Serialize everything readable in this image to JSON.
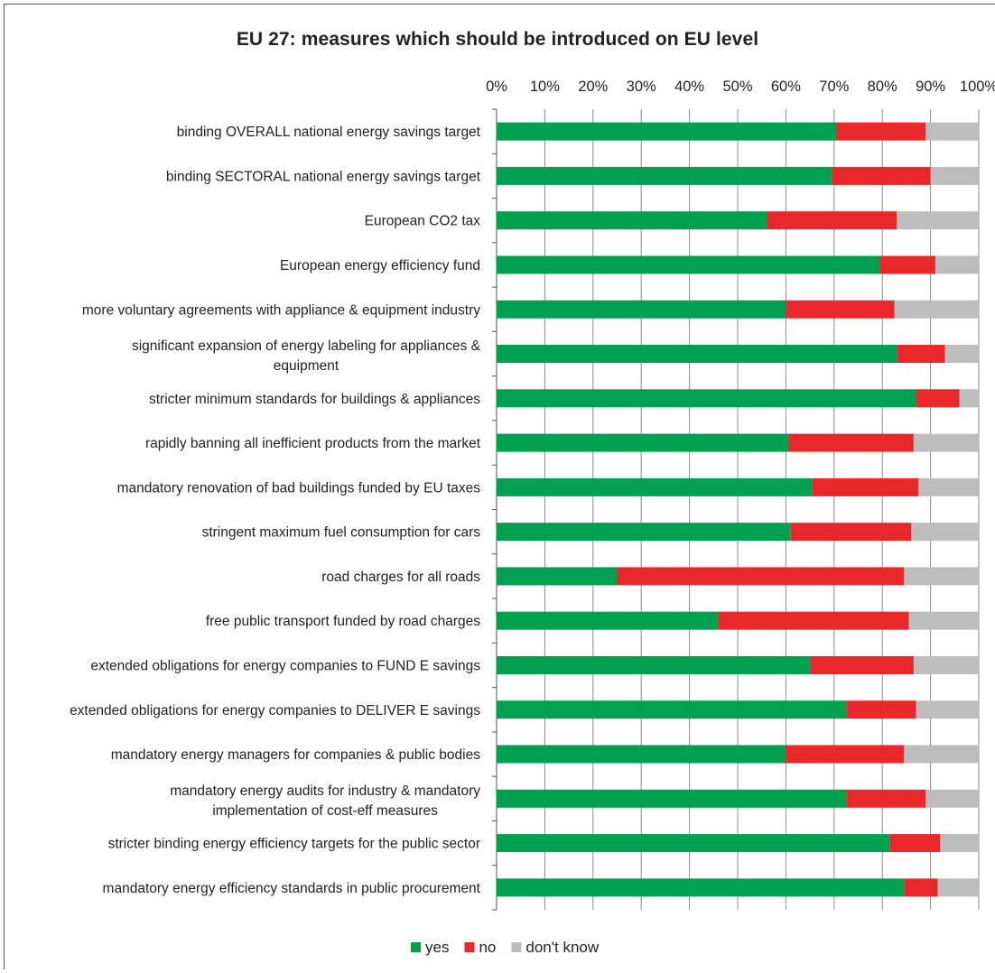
{
  "chart_data": {
    "type": "bar",
    "orientation": "horizontal",
    "stacked": true,
    "title": "EU 27: measures which should be introduced on EU level",
    "xaxis_position": "top",
    "xlim": [
      0,
      100
    ],
    "xticks": [
      "0%",
      "10%",
      "20%",
      "30%",
      "40%",
      "50%",
      "60%",
      "70%",
      "80%",
      "90%",
      "100%"
    ],
    "grid": "vertical",
    "legend_position": "bottom",
    "categories": [
      [
        "binding OVERALL national energy savings target"
      ],
      [
        "binding  SECTORAL national energy savings target"
      ],
      [
        "European CO2 tax"
      ],
      [
        "European energy efficiency fund"
      ],
      [
        "more voluntary agreements with appliance & equipment industry"
      ],
      [
        "significant expansion of energy labeling for appliances &",
        "equipment"
      ],
      [
        "stricter minimum standards for buildings & appliances"
      ],
      [
        "rapidly banning all inefficient products from the market"
      ],
      [
        "mandatory renovation of bad buildings funded by EU taxes"
      ],
      [
        "stringent maximum fuel consumption for cars"
      ],
      [
        "road charges for all roads"
      ],
      [
        "free public transport funded by road charges"
      ],
      [
        "extended obligations for energy companies to FUND E savings"
      ],
      [
        "extended obligations for energy companies to DELIVER E savings"
      ],
      [
        "mandatory energy managers for companies & public bodies"
      ],
      [
        "mandatory energy audits for industry & mandatory",
        "implementation of cost-eff measures"
      ],
      [
        "stricter binding energy efficiency targets for the public sector"
      ],
      [
        "mandatory energy efficiency standards in public procurement"
      ]
    ],
    "series": [
      {
        "name": "yes",
        "color": "#00a050",
        "values": [
          70.5,
          69.5,
          56,
          79.5,
          60,
          83,
          87,
          60.5,
          65.5,
          61,
          25,
          46,
          65,
          72.5,
          60,
          72.5,
          81.5,
          84.5
        ]
      },
      {
        "name": "no",
        "color": "#e8282a",
        "values": [
          18.5,
          20.5,
          27,
          11.5,
          22.5,
          10,
          9,
          26,
          22,
          25,
          59.5,
          39.5,
          21.5,
          14.5,
          24.5,
          16.5,
          10.5,
          7
        ]
      },
      {
        "name": "don't know",
        "color": "#bdbdbd",
        "values": [
          11,
          10,
          17,
          9,
          17.5,
          7,
          4,
          13.5,
          12.5,
          14,
          15.5,
          14.5,
          13.5,
          13,
          15.5,
          11,
          8,
          8.5
        ]
      }
    ]
  }
}
